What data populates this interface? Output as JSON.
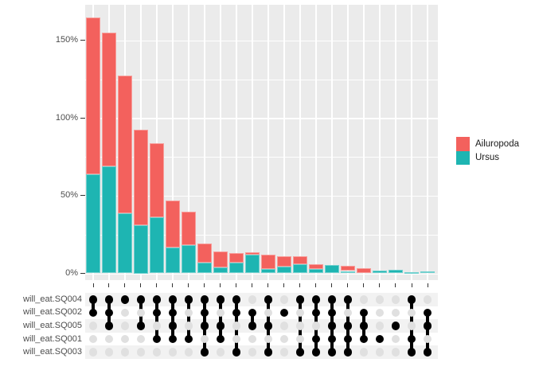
{
  "chart_data": {
    "type": "bar",
    "subtype": "upset-stacked-percentage",
    "title": "",
    "xlabel": "",
    "ylabel": "",
    "y_axis": {
      "tick_values": [
        0,
        50,
        100,
        150
      ],
      "tick_labels": [
        "0%",
        "50%",
        "100%",
        "150%"
      ],
      "ylim": [
        0,
        173
      ],
      "gridline_step_minor": 25,
      "grid": true
    },
    "legend": {
      "position": "right",
      "entries": [
        {
          "label": "Ailuropoda",
          "color": "#F3615D"
        },
        {
          "label": "Ursus",
          "color": "#1EB5B2"
        }
      ]
    },
    "set_rows": [
      "will_eat.SQ004",
      "will_eat.SQ002",
      "will_eat.SQ005",
      "will_eat.SQ001",
      "will_eat.SQ003"
    ],
    "series": [
      {
        "name": "Ailuropoda",
        "color": "#F3615D",
        "values": [
          101,
          86,
          89,
          61.5,
          48,
          30.5,
          22,
          12,
          10,
          6,
          1.5,
          9,
          6.5,
          5,
          3,
          0,
          3.5,
          3.5,
          0,
          0,
          0,
          0
        ]
      },
      {
        "name": "Ursus",
        "color": "#1EB5B2",
        "values": [
          64,
          69,
          38.5,
          31,
          36,
          16.5,
          18,
          7,
          4,
          7,
          12,
          3,
          4.5,
          6,
          3,
          5.5,
          1.5,
          0,
          2,
          2.5,
          1,
          1.5
        ]
      }
    ],
    "combinations": [
      [
        1,
        1,
        0,
        0,
        0
      ],
      [
        1,
        1,
        1,
        0,
        0
      ],
      [
        1,
        0,
        0,
        0,
        0
      ],
      [
        1,
        0,
        1,
        0,
        0
      ],
      [
        1,
        1,
        0,
        1,
        0
      ],
      [
        1,
        1,
        1,
        1,
        0
      ],
      [
        1,
        0,
        0,
        1,
        0
      ],
      [
        1,
        1,
        1,
        0,
        1
      ],
      [
        1,
        0,
        1,
        1,
        0
      ],
      [
        1,
        1,
        0,
        0,
        1
      ],
      [
        0,
        1,
        1,
        0,
        0
      ],
      [
        1,
        0,
        1,
        0,
        1
      ],
      [
        0,
        1,
        0,
        0,
        0
      ],
      [
        1,
        0,
        0,
        0,
        1
      ],
      [
        1,
        1,
        0,
        1,
        1
      ],
      [
        1,
        1,
        1,
        1,
        1
      ],
      [
        1,
        0,
        1,
        1,
        1
      ],
      [
        0,
        1,
        1,
        1,
        0
      ],
      [
        0,
        0,
        0,
        1,
        0
      ],
      [
        0,
        0,
        1,
        0,
        0
      ],
      [
        1,
        0,
        0,
        1,
        1
      ],
      [
        0,
        1,
        1,
        0,
        1
      ]
    ],
    "colors": {
      "panel_background": "#EBEBEB",
      "gridline": "#FFFFFF",
      "stripe_odd": "#F2F2F2",
      "stripe_even": "#FFFFFF",
      "dot_active": "#000000",
      "dot_inactive": "#E0E0E0",
      "tick": "#333333",
      "axis_text": "#4D4D4D"
    }
  }
}
